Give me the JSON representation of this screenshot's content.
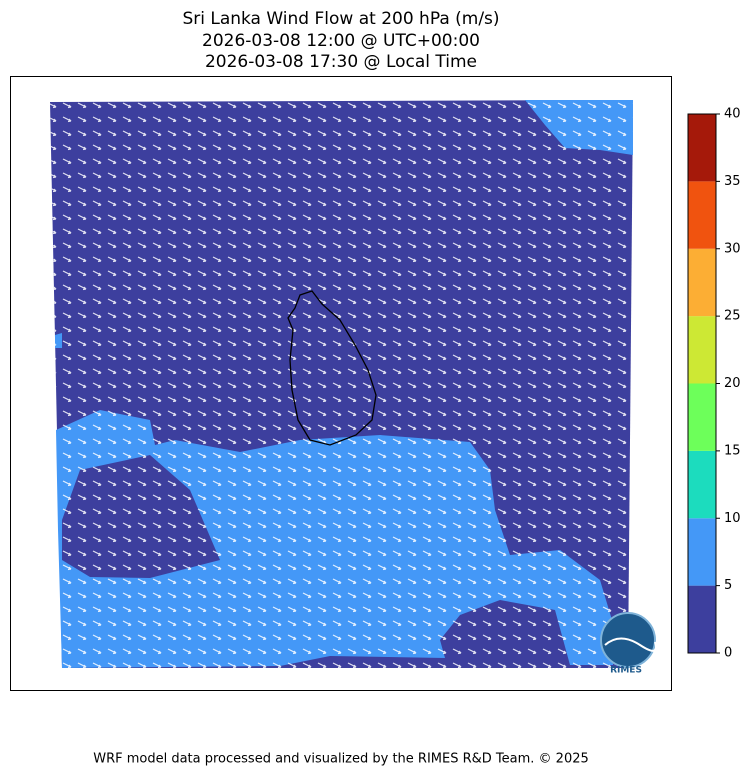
{
  "title": [
    "Sri Lanka Wind Flow at 200 hPa (m/s)",
    "2026-03-08 12:00 @ UTC+00:00",
    "2026-03-08 17:30 @ Local Time"
  ],
  "colorbar": {
    "lim": [
      0,
      40
    ],
    "ticks": [
      0,
      5,
      10,
      15,
      20,
      25,
      30,
      35,
      40
    ],
    "colors": [
      "#3d3f9e",
      "#4498f7",
      "#1cdcbe",
      "#6dff5a",
      "#cde834",
      "#fcae34",
      "#f0530f",
      "#a5190a"
    ]
  },
  "logo": "RIMES",
  "footer": "WRF model data processed and visualized by the RIMES R&D Team. © 2025"
}
